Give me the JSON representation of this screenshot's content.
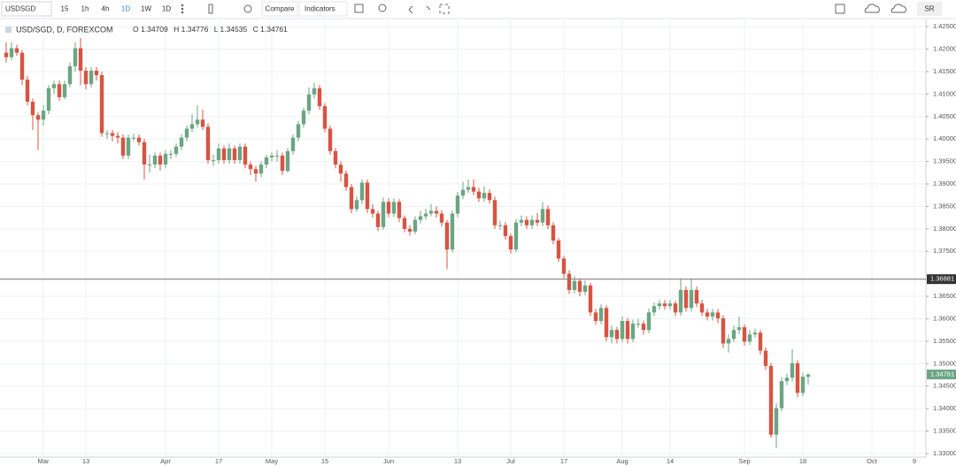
{
  "toolbar": {
    "symbol": "USDSGD",
    "intervals": [
      "15",
      "1h",
      "4h",
      "1D",
      "1W",
      "1D"
    ],
    "compare": "Compare",
    "indicators": "Indicators",
    "user": "SR"
  },
  "chart_data": {
    "type": "candlestick",
    "title": "USD/SGD, D, FOREXCOM",
    "ohlc_labels": [
      "O",
      "H",
      "L",
      "C"
    ],
    "up_color": "#6ba583",
    "down_color": "#d75442",
    "grid": true,
    "categories": [
      null,
      null,
      null,
      null,
      null,
      null,
      null,
      "Mar",
      null,
      null,
      null,
      null,
      null,
      null,
      null,
      "13",
      null,
      null,
      null,
      null,
      null,
      null,
      null,
      null,
      null,
      null,
      null,
      null,
      null,
      null,
      "Apr",
      null,
      null,
      null,
      null,
      null,
      null,
      null,
      null,
      null,
      "17",
      null,
      null,
      null,
      null,
      null,
      null,
      null,
      null,
      null,
      "May",
      null,
      null,
      null,
      null,
      null,
      null,
      null,
      null,
      null,
      "15",
      null,
      null,
      null,
      null,
      null,
      null,
      null,
      null,
      null,
      null,
      null,
      "Jun",
      null,
      null,
      null,
      null,
      null,
      null,
      null,
      null,
      null,
      null,
      null,
      null,
      "13",
      null,
      null,
      null,
      null,
      null,
      null,
      null,
      null,
      null,
      "Jul",
      null,
      null,
      null,
      null,
      null,
      null,
      null,
      null,
      null,
      "17",
      null,
      null,
      null,
      null,
      null,
      null,
      null,
      null,
      null,
      null,
      "Aug",
      null,
      null,
      null,
      null,
      null,
      null,
      null,
      null,
      "14",
      null,
      null,
      null,
      null,
      null,
      null,
      null,
      null,
      null,
      null,
      null,
      null,
      null,
      "Sep",
      null,
      null,
      null,
      null,
      null,
      null,
      null,
      null,
      null,
      null,
      "18",
      null,
      null,
      null,
      null,
      null,
      null,
      null,
      null,
      null,
      null,
      null,
      null,
      "Oct",
      null,
      null,
      null,
      null,
      null,
      null,
      null,
      "9"
    ],
    "open": [
      1.4192,
      1.4182,
      1.4202,
      1.4192,
      1.4132,
      1.4083,
      1.4053,
      1.4043,
      1.4063,
      1.4113,
      1.4122,
      1.4093,
      1.4122,
      1.4162,
      1.4202,
      1.4152,
      1.4122,
      1.4152,
      1.4142,
      1.4013,
      1.4013,
      1.4007,
      1.4003,
      1.3963,
      1.4003,
      1.4003,
      1.3993,
      1.3943,
      1.3943,
      1.3963,
      1.3943,
      1.3967,
      1.3967,
      1.3983,
      1.4003,
      1.4023,
      1.4033,
      1.4043,
      1.4027,
      1.3953,
      1.3953,
      1.3979,
      1.3953,
      1.3979,
      1.3953,
      1.3983,
      1.3943,
      1.3933,
      1.3923,
      1.3943,
      1.3959,
      1.3963,
      1.3963,
      1.3929,
      1.3973,
      1.4003,
      1.4033,
      1.4063,
      1.4099,
      1.4113,
      1.4073,
      1.4023,
      1.3973,
      1.3943,
      1.3923,
      1.3893,
      1.3844,
      1.3864,
      1.3903,
      1.3844,
      1.3834,
      1.3804,
      1.386,
      1.3834,
      1.386,
      1.3824,
      1.38,
      1.3794,
      1.382,
      1.3828,
      1.3834,
      1.384,
      1.3834,
      1.3814,
      1.3754,
      1.3834,
      1.3874,
      1.3887,
      1.3893,
      1.3883,
      1.3868,
      1.388,
      1.3864,
      1.3808,
      1.3808,
      1.3784,
      1.3754,
      1.3814,
      1.382,
      1.3808,
      1.382,
      1.3814,
      1.3844,
      1.3808,
      1.3774,
      1.3734,
      1.37,
      1.3664,
      1.3684,
      1.366,
      1.3674,
      1.3614,
      1.3595,
      1.3624,
      1.3559,
      1.3575,
      1.3555,
      1.3595,
      1.3555,
      1.3589,
      1.3589,
      1.3575,
      1.3614,
      1.3628,
      1.3634,
      1.3628,
      1.3634,
      1.3614,
      1.3664,
      1.3624,
      1.3664,
      1.3634,
      1.3614,
      1.3605,
      1.3614,
      1.3601,
      1.3545,
      1.3555,
      1.3575,
      1.3581,
      1.3549,
      1.3565,
      1.3569,
      1.3529,
      1.3495,
      1.3342,
      1.3401,
      1.3461,
      1.3469,
      1.3501,
      1.3435,
      1.34709,
      null,
      null,
      null,
      null,
      null,
      null,
      null,
      null,
      null,
      null,
      null,
      null,
      null,
      null,
      null,
      null,
      null,
      null,
      null,
      null
    ],
    "high": [
      1.4215,
      1.4215,
      1.421,
      1.4198,
      1.414,
      1.409,
      1.406,
      1.4075,
      1.412,
      1.413,
      1.413,
      1.413,
      1.417,
      1.4215,
      1.4225,
      1.416,
      1.416,
      1.416,
      1.415,
      1.402,
      1.402,
      1.4015,
      1.401,
      1.401,
      1.4012,
      1.401,
      1.4,
      1.3965,
      1.397,
      1.397,
      1.3975,
      1.3975,
      1.399,
      1.401,
      1.403,
      1.4055,
      1.4075,
      1.4065,
      1.4035,
      1.3965,
      1.399,
      1.3985,
      1.399,
      1.3985,
      1.399,
      1.399,
      1.395,
      1.394,
      1.395,
      1.3965,
      1.397,
      1.3975,
      1.397,
      1.398,
      1.401,
      1.404,
      1.407,
      1.4115,
      1.4125,
      1.412,
      1.408,
      1.403,
      1.398,
      1.395,
      1.393,
      1.39,
      1.3872,
      1.391,
      1.391,
      1.3855,
      1.384,
      1.387,
      1.3868,
      1.3868,
      1.3866,
      1.383,
      1.3808,
      1.3828,
      1.384,
      1.3845,
      1.3855,
      1.385,
      1.3842,
      1.382,
      1.3842,
      1.3882,
      1.3905,
      1.391,
      1.391,
      1.3892,
      1.3895,
      1.3888,
      1.3872,
      1.3818,
      1.3815,
      1.379,
      1.3822,
      1.383,
      1.3828,
      1.383,
      1.3835,
      1.386,
      1.3852,
      1.3815,
      1.378,
      1.374,
      1.3708,
      1.3695,
      1.369,
      1.3685,
      1.368,
      1.3622,
      1.3632,
      1.363,
      1.3585,
      1.3582,
      1.3605,
      1.3602,
      1.3598,
      1.36,
      1.3596,
      1.3622,
      1.3636,
      1.3642,
      1.3642,
      1.3642,
      1.364,
      1.369,
      1.3672,
      1.369,
      1.3672,
      1.3642,
      1.3622,
      1.3622,
      1.3622,
      1.3608,
      1.3565,
      1.3585,
      1.3605,
      1.3588,
      1.3575,
      1.3578,
      1.3575,
      1.3536,
      1.3502,
      1.3412,
      1.347,
      1.3478,
      1.3532,
      1.3508,
      1.348,
      1.34776,
      null,
      null,
      null,
      null,
      null,
      null,
      null,
      null,
      null,
      null,
      null,
      null,
      null,
      null,
      null,
      null,
      null,
      null,
      null,
      null
    ],
    "low": [
      1.417,
      1.4175,
      1.4185,
      1.412,
      1.4075,
      1.402,
      1.3975,
      1.403,
      1.4055,
      1.41,
      1.4085,
      1.4088,
      1.4115,
      1.415,
      1.412,
      1.411,
      1.4115,
      1.413,
      1.4005,
      1.4,
      1.3995,
      1.399,
      1.3955,
      1.3955,
      1.3995,
      1.3985,
      1.391,
      1.3925,
      1.3935,
      1.393,
      1.3935,
      1.3955,
      1.396,
      1.3975,
      1.3995,
      1.4015,
      1.4025,
      1.402,
      1.3945,
      1.394,
      1.3945,
      1.3945,
      1.3945,
      1.3945,
      1.3945,
      1.3935,
      1.392,
      1.3905,
      1.3915,
      1.3935,
      1.395,
      1.395,
      1.392,
      1.3925,
      1.3965,
      1.3995,
      1.4025,
      1.4055,
      1.409,
      1.4065,
      1.4015,
      1.3965,
      1.3935,
      1.3905,
      1.3885,
      1.3835,
      1.3838,
      1.3855,
      1.3835,
      1.3825,
      1.3795,
      1.3798,
      1.3826,
      1.3826,
      1.3815,
      1.3792,
      1.3785,
      1.3788,
      1.3812,
      1.382,
      1.3828,
      1.3825,
      1.3805,
      1.371,
      1.3748,
      1.3826,
      1.3866,
      1.388,
      1.3875,
      1.386,
      1.386,
      1.3856,
      1.38,
      1.3798,
      1.3776,
      1.3745,
      1.3748,
      1.3806,
      1.38,
      1.38,
      1.3806,
      1.3806,
      1.38,
      1.3766,
      1.3726,
      1.369,
      1.3655,
      1.3656,
      1.365,
      1.3652,
      1.3606,
      1.3587,
      1.3588,
      1.355,
      1.3545,
      1.3545,
      1.3548,
      1.3545,
      1.3548,
      1.358,
      1.3565,
      1.3568,
      1.3606,
      1.362,
      1.362,
      1.362,
      1.3606,
      1.3606,
      1.3616,
      1.3616,
      1.3626,
      1.3606,
      1.3596,
      1.3596,
      1.359,
      1.3535,
      1.3525,
      1.3548,
      1.3566,
      1.354,
      1.3542,
      1.3558,
      1.352,
      1.3486,
      1.3335,
      1.3312,
      1.3394,
      1.3452,
      1.346,
      1.3425,
      1.3428,
      1.34535,
      null,
      null,
      null,
      null,
      null,
      null,
      null,
      null,
      null,
      null,
      null,
      null,
      null,
      null,
      null,
      null,
      null,
      null,
      null,
      null
    ],
    "close": [
      1.4182,
      1.4202,
      1.4192,
      1.4132,
      1.4083,
      1.4053,
      1.4043,
      1.4063,
      1.4113,
      1.4122,
      1.4093,
      1.4122,
      1.4162,
      1.4202,
      1.4152,
      1.4122,
      1.4152,
      1.4142,
      1.4013,
      1.4013,
      1.4007,
      1.4003,
      1.3963,
      1.4003,
      1.4003,
      1.3993,
      1.3943,
      1.3943,
      1.3963,
      1.3943,
      1.3967,
      1.3967,
      1.3983,
      1.4003,
      1.4023,
      1.4033,
      1.4043,
      1.4027,
      1.3953,
      1.3953,
      1.3979,
      1.3953,
      1.3979,
      1.3953,
      1.3983,
      1.3943,
      1.3933,
      1.3923,
      1.3943,
      1.3959,
      1.3963,
      1.3963,
      1.3929,
      1.3973,
      1.4003,
      1.4033,
      1.4063,
      1.4099,
      1.4113,
      1.4073,
      1.4023,
      1.3973,
      1.3943,
      1.3923,
      1.3893,
      1.3844,
      1.3864,
      1.3903,
      1.3844,
      1.3834,
      1.3804,
      1.386,
      1.3834,
      1.386,
      1.3824,
      1.38,
      1.3794,
      1.382,
      1.3828,
      1.3834,
      1.384,
      1.3834,
      1.3814,
      1.3754,
      1.3834,
      1.3874,
      1.3887,
      1.3893,
      1.3883,
      1.3868,
      1.388,
      1.3864,
      1.3808,
      1.3808,
      1.3784,
      1.3754,
      1.3814,
      1.382,
      1.3808,
      1.382,
      1.3814,
      1.3844,
      1.3808,
      1.3774,
      1.3734,
      1.37,
      1.3664,
      1.3684,
      1.366,
      1.3674,
      1.3614,
      1.3595,
      1.3624,
      1.3559,
      1.3575,
      1.3555,
      1.3595,
      1.3555,
      1.3589,
      1.3589,
      1.3575,
      1.3614,
      1.3628,
      1.3634,
      1.3628,
      1.3634,
      1.3614,
      1.3664,
      1.3624,
      1.3664,
      1.3634,
      1.3614,
      1.3605,
      1.3614,
      1.3601,
      1.3545,
      1.3555,
      1.3575,
      1.3581,
      1.3549,
      1.3565,
      1.3569,
      1.3529,
      1.3495,
      1.3342,
      1.3401,
      1.3461,
      1.3469,
      1.3501,
      1.3435,
      1.34709,
      1.34761,
      null,
      null,
      null,
      null,
      null,
      null,
      null,
      null,
      null,
      null,
      null,
      null,
      null,
      null,
      null,
      null,
      null,
      null,
      null,
      null
    ],
    "ylim": [
      1.3292,
      1.4266
    ],
    "yticks": [
      {
        "value": 1.425,
        "label": "1.42500"
      },
      {
        "value": 1.42,
        "label": "1.42000"
      },
      {
        "value": 1.415,
        "label": "1.41500"
      },
      {
        "value": 1.41,
        "label": "1.41000"
      },
      {
        "value": 1.405,
        "label": "1.40500"
      },
      {
        "value": 1.4,
        "label": "1.40000"
      },
      {
        "value": 1.395,
        "label": "1.39500"
      },
      {
        "value": 1.39,
        "label": "1.39000"
      },
      {
        "value": 1.385,
        "label": "1.38500"
      },
      {
        "value": 1.38,
        "label": "1.38000"
      },
      {
        "value": 1.375,
        "label": "1.37500"
      },
      {
        "value": 1.365,
        "label": "1.36500"
      },
      {
        "value": 1.36,
        "label": "1.36000"
      },
      {
        "value": 1.355,
        "label": "1.35500"
      },
      {
        "value": 1.35,
        "label": "1.35000"
      },
      {
        "value": 1.345,
        "label": "1.34500"
      },
      {
        "value": 1.34,
        "label": "1.34000"
      },
      {
        "value": 1.335,
        "label": "1.33500"
      },
      {
        "value": 1.33,
        "label": "1.33000"
      }
    ],
    "hline": 1.36881
  }
}
